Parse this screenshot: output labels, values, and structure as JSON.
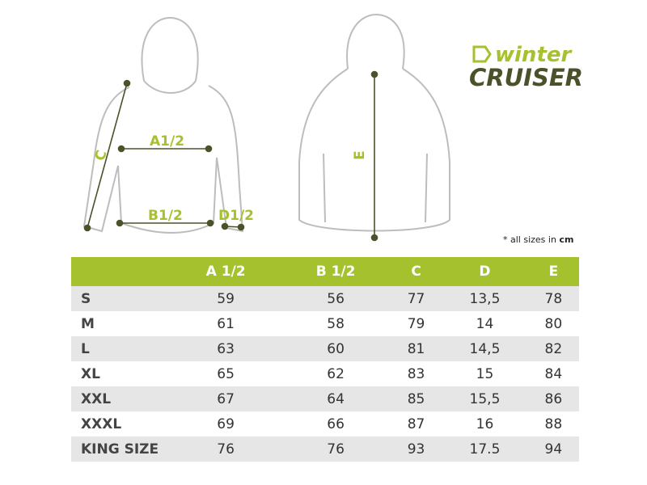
{
  "logo": {
    "line1": "winter",
    "line2": "CRUISER"
  },
  "diagram": {
    "a": "A1/2",
    "b": "B1/2",
    "c": "C",
    "d": "D1/2",
    "e": "E"
  },
  "note": {
    "text": "* all sizes in",
    "unit": "cm"
  },
  "table": {
    "header": [
      "A 1/2",
      "B 1/2",
      "C",
      "D",
      "E"
    ],
    "rows": [
      [
        "S",
        "59",
        "56",
        "77",
        "13,5",
        "78"
      ],
      [
        "M",
        "61",
        "58",
        "79",
        "14",
        "80"
      ],
      [
        "L",
        "63",
        "60",
        "81",
        "14,5",
        "82"
      ],
      [
        "XL",
        "65",
        "62",
        "83",
        "15",
        "84"
      ],
      [
        "XXL",
        "67",
        "64",
        "85",
        "15,5",
        "86"
      ],
      [
        "XXXL",
        "69",
        "66",
        "87",
        "16",
        "88"
      ],
      [
        "KING SIZE",
        "76",
        "76",
        "93",
        "17.5",
        "94"
      ]
    ]
  }
}
